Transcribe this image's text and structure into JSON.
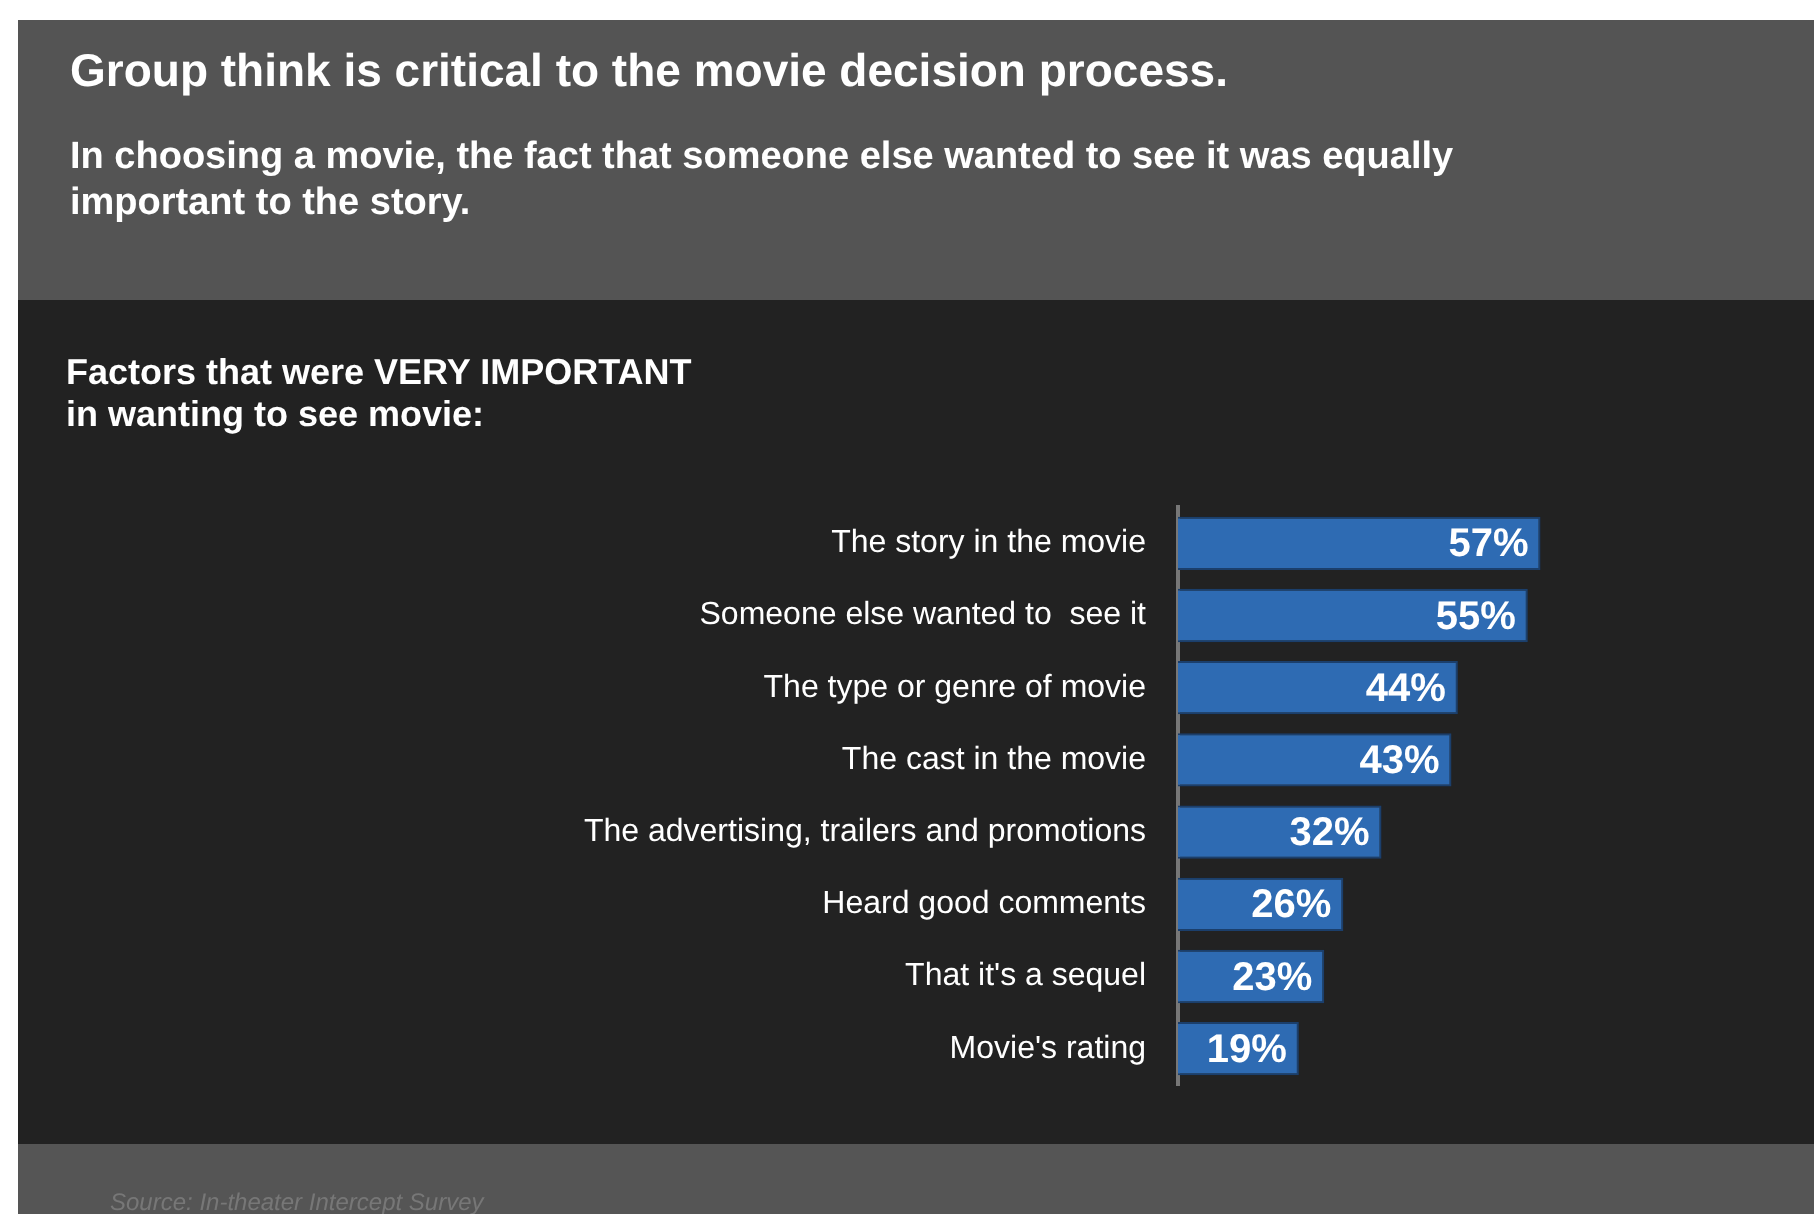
{
  "chart_data": {
    "type": "bar",
    "orientation": "horizontal",
    "title": "Group think is critical to the movie decision process.",
    "subtitle": "In choosing a movie, the fact that someone else wanted to see it was equally important to the story.",
    "annotations": [
      "Factors that were VERY IMPORTANT\nin wanting to see movie:",
      "Source: In-theater Intercept Survey"
    ],
    "categories": [
      "The story in the movie",
      "Someone else wanted to  see it",
      "The type or genre of movie",
      "The cast in the movie",
      "The advertising, trailers and promotions",
      "Heard good comments",
      "That it's a sequel",
      "Movie's rating"
    ],
    "values": [
      57,
      55,
      44,
      43,
      32,
      26,
      23,
      19
    ],
    "value_labels": [
      "57%",
      "55%",
      "44%",
      "43%",
      "32%",
      "26%",
      "23%",
      "19%"
    ],
    "color": "#2e6bb3",
    "xlim": [
      0,
      100
    ],
    "tick_labels": "y"
  }
}
